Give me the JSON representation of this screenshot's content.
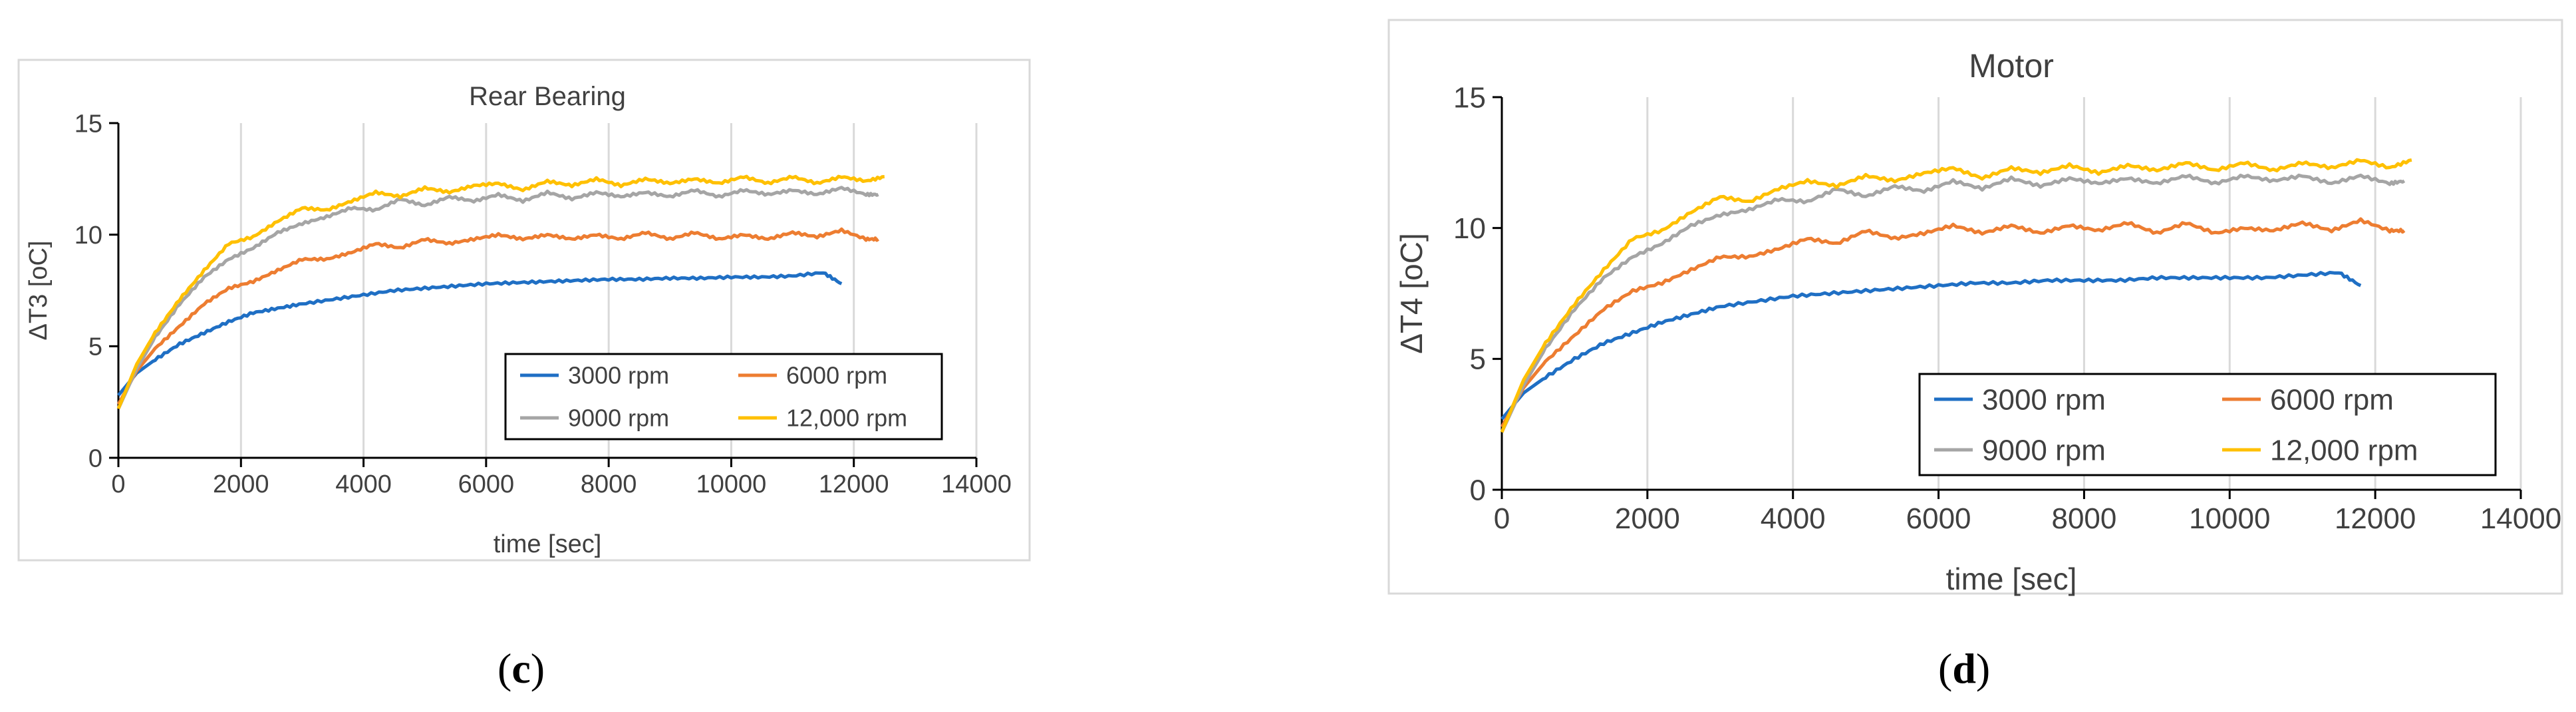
{
  "chart_data": [
    {
      "type": "line",
      "title": "Rear Bearing",
      "xlabel": "time [sec]",
      "ylabel": "ΔT3 [oC]",
      "xlim": [
        0,
        14000
      ],
      "ylim": [
        0,
        15
      ],
      "xticks": [
        0,
        2000,
        4000,
        6000,
        8000,
        10000,
        12000,
        14000
      ],
      "yticks": [
        0,
        5,
        10,
        15
      ],
      "grid": "vertical",
      "legend_position": "bottom-right",
      "series": [
        {
          "name": "3000 rpm",
          "color": "#1f6fc4",
          "x": [
            0,
            300,
            600,
            1000,
            1400,
            1800,
            2200,
            2600,
            3000,
            3500,
            4000,
            4500,
            5000,
            5500,
            6000,
            6500,
            7000,
            7500,
            8000,
            8500,
            9000,
            9500,
            10000,
            10500,
            11000,
            11500,
            11800
          ],
          "y": [
            2.8,
            3.8,
            4.4,
            5.1,
            5.6,
            6.1,
            6.5,
            6.7,
            6.9,
            7.1,
            7.3,
            7.5,
            7.6,
            7.7,
            7.8,
            7.85,
            7.9,
            7.95,
            8.0,
            8.0,
            8.05,
            8.05,
            8.1,
            8.1,
            8.15,
            8.3,
            7.8
          ]
        },
        {
          "name": "6000 rpm",
          "color": "#ed7d31",
          "x": [
            0,
            300,
            600,
            1000,
            1400,
            1800,
            2200,
            2600,
            3000,
            3400,
            3800,
            4200,
            4600,
            5000,
            5400,
            5800,
            6200,
            6600,
            7000,
            7400,
            7800,
            8200,
            8600,
            9000,
            9400,
            9800,
            10200,
            10600,
            11000,
            11400,
            11800,
            12200,
            12400
          ],
          "y": [
            2.4,
            3.9,
            4.9,
            5.9,
            6.9,
            7.6,
            7.9,
            8.4,
            8.9,
            8.9,
            9.2,
            9.6,
            9.4,
            9.8,
            9.6,
            9.8,
            10.0,
            9.8,
            10.0,
            9.8,
            10.0,
            9.8,
            10.1,
            9.8,
            10.1,
            9.8,
            10.0,
            9.8,
            10.1,
            9.9,
            10.2,
            9.8,
            9.8
          ]
        },
        {
          "name": "9000 rpm",
          "color": "#a5a5a5",
          "x": [
            0,
            300,
            600,
            1000,
            1400,
            1800,
            2200,
            2600,
            3000,
            3400,
            3800,
            4200,
            4600,
            5000,
            5400,
            5800,
            6200,
            6600,
            7000,
            7400,
            7800,
            8200,
            8600,
            9000,
            9400,
            9800,
            10200,
            10600,
            11000,
            11400,
            11800,
            12200,
            12400
          ],
          "y": [
            2.2,
            4.0,
            5.4,
            6.9,
            8.1,
            8.9,
            9.4,
            10.1,
            10.5,
            10.8,
            11.2,
            11.1,
            11.6,
            11.3,
            11.7,
            11.5,
            11.8,
            11.5,
            11.9,
            11.6,
            11.9,
            11.7,
            11.9,
            11.7,
            12.0,
            11.7,
            12.0,
            11.8,
            12.0,
            11.8,
            12.1,
            11.8,
            11.8
          ]
        },
        {
          "name": "12,000 rpm",
          "color": "#ffc000",
          "x": [
            0,
            300,
            600,
            1000,
            1400,
            1800,
            2200,
            2600,
            3000,
            3400,
            3800,
            4200,
            4600,
            5000,
            5400,
            5800,
            6200,
            6600,
            7000,
            7400,
            7800,
            8200,
            8600,
            9000,
            9400,
            9800,
            10200,
            10600,
            11000,
            11400,
            11800,
            12200,
            12500
          ],
          "y": [
            2.2,
            4.2,
            5.6,
            7.1,
            8.4,
            9.6,
            9.9,
            10.6,
            11.2,
            11.1,
            11.5,
            11.9,
            11.7,
            12.1,
            11.9,
            12.2,
            12.3,
            12.0,
            12.4,
            12.2,
            12.5,
            12.2,
            12.5,
            12.3,
            12.5,
            12.3,
            12.6,
            12.3,
            12.6,
            12.3,
            12.6,
            12.4,
            12.6
          ]
        }
      ]
    },
    {
      "type": "line",
      "title": "Motor",
      "xlabel": "time [sec]",
      "ylabel": "ΔT4 [oC]",
      "xlim": [
        0,
        14000
      ],
      "ylim": [
        0,
        15
      ],
      "xticks": [
        0,
        2000,
        4000,
        6000,
        8000,
        10000,
        12000,
        14000
      ],
      "yticks": [
        0,
        5,
        10,
        15
      ],
      "grid": "vertical",
      "legend_position": "bottom-right",
      "series": [
        {
          "name": "3000 rpm",
          "color": "#1f6fc4",
          "x": [
            0,
            300,
            600,
            1000,
            1400,
            1800,
            2200,
            2600,
            3000,
            3500,
            4000,
            4500,
            5000,
            5500,
            6000,
            6500,
            7000,
            7500,
            8000,
            8500,
            9000,
            9500,
            10000,
            10500,
            11000,
            11500,
            11800
          ],
          "y": [
            2.7,
            3.7,
            4.3,
            5.0,
            5.6,
            6.0,
            6.4,
            6.7,
            7.0,
            7.2,
            7.4,
            7.5,
            7.6,
            7.7,
            7.8,
            7.9,
            7.9,
            8.0,
            8.0,
            8.0,
            8.1,
            8.1,
            8.1,
            8.1,
            8.2,
            8.3,
            7.8
          ]
        },
        {
          "name": "6000 rpm",
          "color": "#ed7d31",
          "x": [
            0,
            300,
            600,
            1000,
            1400,
            1800,
            2200,
            2600,
            3000,
            3400,
            3800,
            4200,
            4600,
            5000,
            5400,
            5800,
            6200,
            6600,
            7000,
            7400,
            7800,
            8200,
            8600,
            9000,
            9400,
            9800,
            10200,
            10600,
            11000,
            11400,
            11800,
            12200,
            12400
          ],
          "y": [
            2.4,
            3.9,
            4.9,
            5.9,
            6.9,
            7.6,
            7.9,
            8.4,
            8.9,
            8.9,
            9.2,
            9.6,
            9.4,
            9.9,
            9.6,
            9.8,
            10.1,
            9.8,
            10.1,
            9.8,
            10.1,
            9.9,
            10.2,
            9.8,
            10.2,
            9.8,
            10.0,
            9.9,
            10.2,
            9.9,
            10.3,
            9.9,
            9.9
          ]
        },
        {
          "name": "9000 rpm",
          "color": "#a5a5a5",
          "x": [
            0,
            300,
            600,
            1000,
            1400,
            1800,
            2200,
            2600,
            3000,
            3400,
            3800,
            4200,
            4600,
            5000,
            5400,
            5800,
            6200,
            6600,
            7000,
            7400,
            7800,
            8200,
            8600,
            9000,
            9400,
            9800,
            10200,
            10600,
            11000,
            11400,
            11800,
            12200,
            12400
          ],
          "y": [
            2.2,
            4.0,
            5.4,
            6.9,
            8.1,
            8.9,
            9.4,
            10.1,
            10.5,
            10.7,
            11.1,
            11.0,
            11.5,
            11.2,
            11.6,
            11.4,
            11.8,
            11.5,
            11.9,
            11.6,
            11.9,
            11.7,
            11.9,
            11.7,
            12.0,
            11.7,
            12.0,
            11.8,
            12.0,
            11.7,
            12.0,
            11.7,
            11.8
          ]
        },
        {
          "name": "12,000 rpm",
          "color": "#ffc000",
          "x": [
            0,
            300,
            600,
            1000,
            1400,
            1800,
            2200,
            2600,
            3000,
            3400,
            3800,
            4200,
            4600,
            5000,
            5400,
            5800,
            6200,
            6600,
            7000,
            7400,
            7800,
            8200,
            8600,
            9000,
            9400,
            9800,
            10200,
            10600,
            11000,
            11400,
            11800,
            12200,
            12500
          ],
          "y": [
            2.2,
            4.2,
            5.6,
            7.1,
            8.4,
            9.6,
            9.9,
            10.6,
            11.2,
            11.0,
            11.5,
            11.8,
            11.6,
            12.0,
            11.8,
            12.1,
            12.3,
            11.9,
            12.3,
            12.1,
            12.4,
            12.1,
            12.4,
            12.2,
            12.5,
            12.2,
            12.5,
            12.2,
            12.5,
            12.3,
            12.6,
            12.3,
            12.6
          ]
        }
      ]
    }
  ],
  "panels": [
    {
      "label_open": "(",
      "label_letter": "c",
      "label_close": ")"
    },
    {
      "label_open": "(",
      "label_letter": "d",
      "label_close": ")"
    }
  ]
}
